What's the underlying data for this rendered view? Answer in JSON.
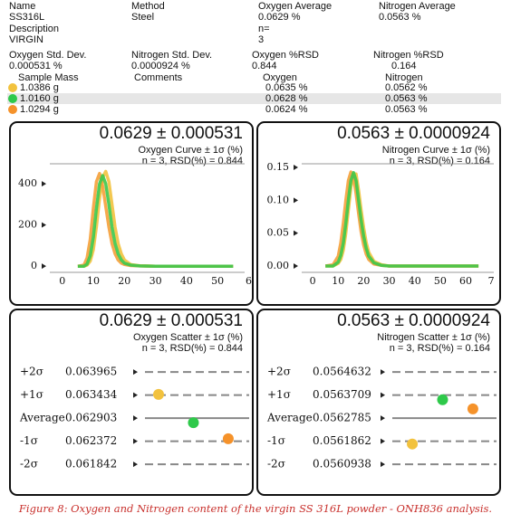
{
  "header": {
    "rows": [
      [
        "Name",
        "Method",
        "Oxygen Average",
        "Nitrogen Average"
      ],
      [
        "SS316L",
        "Steel",
        "0.0629 %",
        "0.0563 %"
      ],
      [
        "Description",
        "n="
      ],
      [
        "VIRGIN",
        "3"
      ],
      [
        "Oxygen Std. Dev.",
        "Nitrogen Std. Dev.",
        "Oxygen %RSD",
        "Nitrogen %RSD"
      ],
      [
        "0.000531 %",
        "0.0000924 %",
        "0.844",
        "0.164"
      ],
      [
        "Sample Mass",
        "Comments",
        "Oxygen",
        "Nitrogen"
      ]
    ]
  },
  "samples": {
    "rows": [
      {
        "mass": "1.0386 g",
        "oxygen": "0.0635 %",
        "nitrogen": "0.0562 %",
        "color": "#f2c23e"
      },
      {
        "mass": "1.0160 g",
        "oxygen": "0.0628 %",
        "nitrogen": "0.0563 %",
        "color": "#2ec94a"
      },
      {
        "mass": "1.0294 g",
        "oxygen": "0.0624 %",
        "nitrogen": "0.0563 %",
        "color": "#f5922a"
      }
    ]
  },
  "chart_data": [
    {
      "type": "line",
      "title": "0.0629 ± 0.000531",
      "subtitle": "Oxygen Curve ± 1σ (%)",
      "note": "n = 3, RSD(%) = 0.844",
      "x": [
        5,
        7,
        8,
        9,
        10,
        11,
        12,
        13,
        14,
        15,
        16,
        17,
        18,
        19,
        20,
        22,
        25,
        30,
        40,
        55
      ],
      "series": [
        {
          "color": "#f2c23e",
          "values": [
            0,
            0,
            5,
            25,
            80,
            190,
            330,
            430,
            460,
            410,
            300,
            190,
            110,
            60,
            30,
            8,
            2,
            0,
            0,
            0
          ]
        },
        {
          "color": "#f5a03a",
          "values": [
            0,
            5,
            40,
            130,
            280,
            410,
            450,
            390,
            290,
            190,
            110,
            60,
            30,
            15,
            8,
            3,
            1,
            0,
            0,
            0
          ]
        },
        {
          "color": "#3cc84a",
          "values": [
            0,
            0,
            10,
            50,
            140,
            280,
            400,
            440,
            400,
            300,
            190,
            110,
            60,
            30,
            15,
            5,
            1,
            0,
            0,
            0
          ]
        }
      ],
      "xlim": [
        -4,
        58.7
      ],
      "ylim": [
        -30,
        497
      ],
      "xticks": [
        0,
        10,
        20,
        30,
        40,
        50,
        {
          "value": 60,
          "label": "6"
        }
      ],
      "yticks": [
        0,
        200,
        400
      ]
    },
    {
      "type": "line",
      "title": "0.0563 ± 0.0000924",
      "subtitle": "Nitrogen Curve ± 1σ (%)",
      "note": "n = 3, RSD(%) = 0.164",
      "x": [
        5,
        8,
        10,
        11,
        12,
        13,
        14,
        15,
        16,
        17,
        18,
        19,
        20,
        21,
        22,
        24,
        27,
        30,
        40,
        55,
        65
      ],
      "series": [
        {
          "color": "#f2c23e",
          "values": [
            0,
            0,
            0.004,
            0.01,
            0.024,
            0.05,
            0.085,
            0.12,
            0.14,
            0.14,
            0.115,
            0.085,
            0.058,
            0.036,
            0.021,
            0.007,
            0.002,
            0,
            0,
            0,
            0
          ]
        },
        {
          "color": "#f5a03a",
          "values": [
            0,
            0.002,
            0.015,
            0.035,
            0.065,
            0.1,
            0.13,
            0.143,
            0.135,
            0.11,
            0.08,
            0.052,
            0.032,
            0.018,
            0.01,
            0.003,
            0.001,
            0,
            0,
            0,
            0
          ]
        },
        {
          "color": "#3cc84a",
          "values": [
            0,
            0,
            0.006,
            0.016,
            0.035,
            0.065,
            0.1,
            0.13,
            0.142,
            0.13,
            0.1,
            0.07,
            0.045,
            0.027,
            0.015,
            0.005,
            0.001,
            0,
            0,
            0,
            0
          ]
        }
      ],
      "xlim": [
        -4.3,
        71
      ],
      "ylim": [
        -0.0096,
        0.1555
      ],
      "xticks": [
        0,
        10,
        20,
        30,
        40,
        50,
        60,
        {
          "value": 70,
          "label": "7"
        }
      ],
      "yticks": [
        {
          "value": 0,
          "label": "0.00"
        },
        {
          "value": 0.05,
          "label": "0.05"
        },
        {
          "value": 0.1,
          "label": "0.10"
        },
        {
          "value": 0.15,
          "label": "0.15"
        }
      ]
    },
    {
      "type": "scatter",
      "title": "0.0629 ± 0.000531",
      "subtitle": "Oxygen Scatter ± 1σ (%)",
      "note": "n = 3, RSD(%) = 0.844",
      "x": [
        1,
        2,
        3
      ],
      "values": [
        0.06345,
        0.0628,
        0.06243
      ],
      "colors": [
        "#f2c23e",
        "#2ec94a",
        "#f5922a"
      ],
      "xlim": [
        0.74,
        3.6
      ],
      "ylim": [
        0.06147,
        0.06428
      ],
      "level_labels": [
        "+2σ",
        "+1σ",
        "Average",
        "-1σ",
        "-2σ"
      ],
      "yticks": [
        0.063965,
        0.063434,
        0.062903,
        0.062372,
        0.061842
      ]
    },
    {
      "type": "scatter",
      "title": "0.0563 ± 0.0000924",
      "subtitle": "Nitrogen Scatter ± 1σ (%)",
      "note": "n = 3, RSD(%) = 0.164",
      "x": [
        1,
        2,
        3
      ],
      "values": [
        0.056175,
        0.0563524,
        0.0563155
      ],
      "colors": [
        "#f2c23e",
        "#2ec94a",
        "#f5922a"
      ],
      "xlim": [
        0.49,
        3.78
      ],
      "ylim": [
        0.056029,
        0.056518
      ],
      "level_labels": [
        "+2σ",
        "+1σ",
        "Average",
        "-1σ",
        "-2σ"
      ],
      "yticks": [
        0.0564632,
        0.0563709,
        0.0562785,
        0.0561862,
        0.0560938
      ]
    }
  ],
  "caption": "Figure 8: Oxygen and Nitrogen content of the virgin SS 316L powder - ONH836 analysis."
}
